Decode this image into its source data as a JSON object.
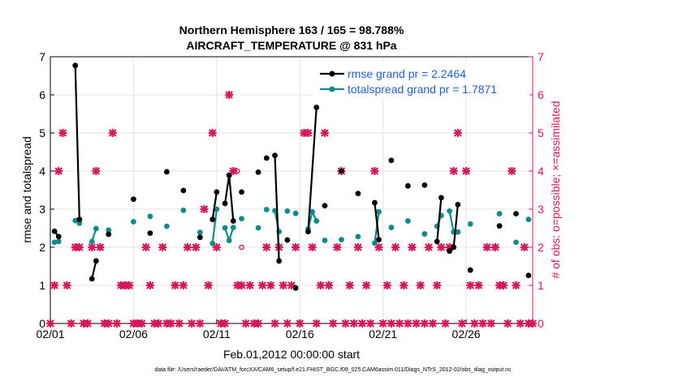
{
  "chart_data": {
    "type": "line",
    "title": "Northern Hemisphere 163 / 165 = 98.788%",
    "subtitle": "AIRCRAFT_TEMPERATURE @ 831 hPa",
    "xlabel": "Feb.01,2012 00:00:00 start",
    "ylabel": "rmse and totalspread",
    "y2label": "# of obs: o=possible; ×=assimilated",
    "footer": "data file: /Users/raeder/DAI/ATM_forcXX/CAM6_setup/f.e21.FHIST_BGC.f09_025.CAM6assim.011/Diags_NTrS_2012-02/obs_diag_output.nc",
    "xlim": [
      0,
      29
    ],
    "ylim": [
      0,
      7
    ],
    "y2lim": [
      0,
      7
    ],
    "xticks": [
      0,
      5,
      10,
      15,
      20,
      25
    ],
    "xtick_labels": [
      "02/01",
      "02/06",
      "02/11",
      "02/16",
      "02/21",
      "02/26"
    ],
    "yticks": [
      "0",
      "1",
      "2",
      "3",
      "4",
      "5",
      "6",
      "7"
    ],
    "y2ticks": [
      "0",
      "1",
      "2",
      "3",
      "4",
      "5",
      "6",
      "7"
    ],
    "grid": true,
    "legend_position": "top-right",
    "colors": {
      "rmse": "#000000",
      "spread": "#0e8a8a",
      "obs": "#d6185a",
      "legend_text": "#1f5fd6"
    },
    "series": [
      {
        "name": "rmse grand pr = 2.2464",
        "color": "#000000",
        "segments": [
          [
            [
              0.25,
              2.42
            ],
            [
              0.5,
              2.28
            ]
          ],
          [
            [
              1.5,
              6.77
            ],
            [
              1.75,
              2.73
            ]
          ],
          [
            [
              2.5,
              1.17
            ],
            [
              2.75,
              1.64
            ]
          ],
          [
            [
              3.5,
              2.34
            ]
          ],
          [
            [
              5.0,
              3.26
            ]
          ],
          [
            [
              6.0,
              2.37
            ]
          ],
          [
            [
              7.0,
              3.98
            ]
          ],
          [
            [
              8.0,
              3.49
            ]
          ],
          [
            [
              9.0,
              2.26
            ]
          ],
          [
            [
              9.75,
              2.73
            ],
            [
              10.0,
              3.45
            ]
          ],
          [
            [
              10.5,
              3.15
            ],
            [
              10.75,
              3.89
            ],
            [
              11.0,
              2.69
            ]
          ],
          [
            [
              11.5,
              3.45
            ]
          ],
          [
            [
              12.5,
              3.97
            ]
          ],
          [
            [
              13.0,
              4.34
            ]
          ],
          [
            [
              13.5,
              4.41
            ],
            [
              13.75,
              1.64
            ]
          ],
          [
            [
              14.25,
              2.19
            ]
          ],
          [
            [
              14.75,
              0.93
            ]
          ],
          [
            [
              15.5,
              2.41
            ],
            [
              16.0,
              5.67
            ]
          ],
          [
            [
              16.5,
              3.09
            ]
          ],
          [
            [
              17.5,
              4.0
            ]
          ],
          [
            [
              18.5,
              3.41
            ]
          ],
          [
            [
              19.5,
              3.17
            ],
            [
              19.75,
              2.2
            ]
          ],
          [
            [
              20.5,
              4.28
            ]
          ],
          [
            [
              21.5,
              3.61
            ]
          ],
          [
            [
              22.5,
              3.63
            ]
          ],
          [
            [
              23.25,
              2.15
            ],
            [
              23.5,
              3.3
            ]
          ],
          [
            [
              24.0,
              1.9
            ],
            [
              24.25,
              2.0
            ],
            [
              24.5,
              3.12
            ]
          ],
          [
            [
              25.25,
              1.4
            ]
          ],
          [
            [
              27.0,
              2.56
            ]
          ],
          [
            [
              28.0,
              2.88
            ]
          ],
          [
            [
              28.75,
              1.26
            ]
          ]
        ]
      },
      {
        "name": "totalspread grand pr = 1.7871",
        "color": "#0e8a8a",
        "segments": [
          [
            [
              0.25,
              2.13
            ],
            [
              0.5,
              2.15
            ]
          ],
          [
            [
              1.5,
              2.7
            ],
            [
              1.75,
              2.63
            ]
          ],
          [
            [
              2.5,
              2.15
            ],
            [
              2.75,
              2.49
            ]
          ],
          [
            [
              3.5,
              2.45
            ]
          ],
          [
            [
              5.0,
              2.67
            ]
          ],
          [
            [
              6.0,
              2.81
            ]
          ],
          [
            [
              7.0,
              2.55
            ]
          ],
          [
            [
              8.0,
              2.97
            ]
          ],
          [
            [
              9.0,
              2.39
            ]
          ],
          [
            [
              9.75,
              2.1
            ],
            [
              10.0,
              3.0
            ]
          ],
          [
            [
              10.5,
              2.51
            ],
            [
              10.75,
              2.18
            ],
            [
              11.0,
              2.52
            ]
          ],
          [
            [
              11.5,
              2.75
            ]
          ],
          [
            [
              12.5,
              2.51
            ]
          ],
          [
            [
              13.0,
              2.99
            ]
          ],
          [
            [
              13.5,
              2.96
            ],
            [
              13.75,
              2.41
            ]
          ],
          [
            [
              14.25,
              2.95
            ]
          ],
          [
            [
              14.75,
              2.89
            ]
          ],
          [
            [
              15.5,
              2.48
            ],
            [
              15.75,
              2.93
            ],
            [
              16.0,
              2.69
            ]
          ],
          [
            [
              16.5,
              2.18
            ]
          ],
          [
            [
              17.5,
              2.2
            ]
          ],
          [
            [
              18.5,
              2.28
            ]
          ],
          [
            [
              19.5,
              2.11
            ],
            [
              19.75,
              2.93
            ]
          ],
          [
            [
              20.5,
              2.52
            ]
          ],
          [
            [
              21.5,
              2.69
            ]
          ],
          [
            [
              22.5,
              2.35
            ]
          ],
          [
            [
              23.25,
              2.55
            ],
            [
              23.5,
              2.83
            ]
          ],
          [
            [
              24.0,
              2.95
            ],
            [
              24.25,
              2.4
            ],
            [
              24.5,
              2.4
            ]
          ],
          [
            [
              25.25,
              2.61
            ]
          ],
          [
            [
              27.0,
              2.88
            ]
          ],
          [
            [
              28.0,
              2.13
            ]
          ],
          [
            [
              28.75,
              2.73
            ]
          ]
        ]
      }
    ],
    "obs_assimilated": [
      [
        0,
        0
      ],
      [
        0.25,
        1
      ],
      [
        0.5,
        4
      ],
      [
        0.75,
        5
      ],
      [
        1.0,
        1
      ],
      [
        1.25,
        0
      ],
      [
        1.5,
        2
      ],
      [
        1.75,
        2
      ],
      [
        2.0,
        0
      ],
      [
        2.25,
        0
      ],
      [
        2.5,
        2
      ],
      [
        2.75,
        4
      ],
      [
        3.0,
        2
      ],
      [
        3.25,
        0
      ],
      [
        3.5,
        0
      ],
      [
        3.75,
        5
      ],
      [
        4.0,
        0
      ],
      [
        4.25,
        1
      ],
      [
        4.5,
        1
      ],
      [
        4.75,
        1
      ],
      [
        5.0,
        0
      ],
      [
        5.25,
        0
      ],
      [
        5.5,
        0
      ],
      [
        5.75,
        2
      ],
      [
        6.0,
        1
      ],
      [
        6.25,
        0
      ],
      [
        6.5,
        0
      ],
      [
        6.75,
        2
      ],
      [
        7.0,
        0
      ],
      [
        7.25,
        0
      ],
      [
        7.5,
        1
      ],
      [
        7.75,
        0
      ],
      [
        8.0,
        1
      ],
      [
        8.25,
        2
      ],
      [
        8.5,
        0
      ],
      [
        8.75,
        2
      ],
      [
        9.0,
        0
      ],
      [
        9.25,
        3
      ],
      [
        9.5,
        1
      ],
      [
        9.75,
        5
      ],
      [
        10.0,
        2
      ],
      [
        10.25,
        0
      ],
      [
        10.5,
        0
      ],
      [
        10.75,
        6
      ],
      [
        11.0,
        4
      ],
      [
        11.25,
        1
      ],
      [
        11.5,
        1
      ],
      [
        11.75,
        0
      ],
      [
        12.0,
        1
      ],
      [
        12.25,
        0
      ],
      [
        12.5,
        0
      ],
      [
        12.75,
        1
      ],
      [
        13.0,
        2
      ],
      [
        13.25,
        1
      ],
      [
        13.5,
        0
      ],
      [
        13.75,
        2
      ],
      [
        14.0,
        1
      ],
      [
        14.25,
        0
      ],
      [
        14.5,
        1
      ],
      [
        14.75,
        2
      ],
      [
        15.0,
        0
      ],
      [
        15.25,
        5
      ],
      [
        15.5,
        5
      ],
      [
        15.75,
        2
      ],
      [
        16.0,
        0
      ],
      [
        16.25,
        1
      ],
      [
        16.5,
        5
      ],
      [
        16.75,
        1
      ],
      [
        17.0,
        0
      ],
      [
        17.25,
        2
      ],
      [
        17.5,
        4
      ],
      [
        17.75,
        0
      ],
      [
        18.0,
        1
      ],
      [
        18.25,
        0
      ],
      [
        18.5,
        2
      ],
      [
        18.75,
        0
      ],
      [
        19.0,
        1
      ],
      [
        19.25,
        0
      ],
      [
        19.5,
        4
      ],
      [
        19.75,
        2
      ],
      [
        20.0,
        0
      ],
      [
        20.25,
        1
      ],
      [
        20.5,
        0
      ],
      [
        20.75,
        2
      ],
      [
        21.0,
        0
      ],
      [
        21.25,
        1
      ],
      [
        21.5,
        0
      ],
      [
        21.75,
        2
      ],
      [
        22.0,
        0
      ],
      [
        22.25,
        1
      ],
      [
        22.5,
        0
      ],
      [
        22.75,
        2
      ],
      [
        23.0,
        0
      ],
      [
        23.25,
        1
      ],
      [
        23.5,
        2
      ],
      [
        23.75,
        0
      ],
      [
        24.0,
        2
      ],
      [
        24.25,
        4
      ],
      [
        24.5,
        5
      ],
      [
        24.75,
        0
      ],
      [
        25.0,
        4
      ],
      [
        25.25,
        1
      ],
      [
        25.5,
        0
      ],
      [
        25.75,
        1
      ],
      [
        26.0,
        0
      ],
      [
        26.25,
        2
      ],
      [
        26.5,
        0
      ],
      [
        26.75,
        2
      ],
      [
        27.0,
        1
      ],
      [
        27.25,
        1
      ],
      [
        27.5,
        0
      ],
      [
        27.75,
        4
      ],
      [
        28.0,
        1
      ],
      [
        28.25,
        0
      ],
      [
        28.5,
        2
      ],
      [
        28.75,
        0
      ],
      [
        29.0,
        0
      ]
    ],
    "obs_possible": [
      [
        11.25,
        4
      ],
      [
        11.5,
        2
      ]
    ]
  }
}
